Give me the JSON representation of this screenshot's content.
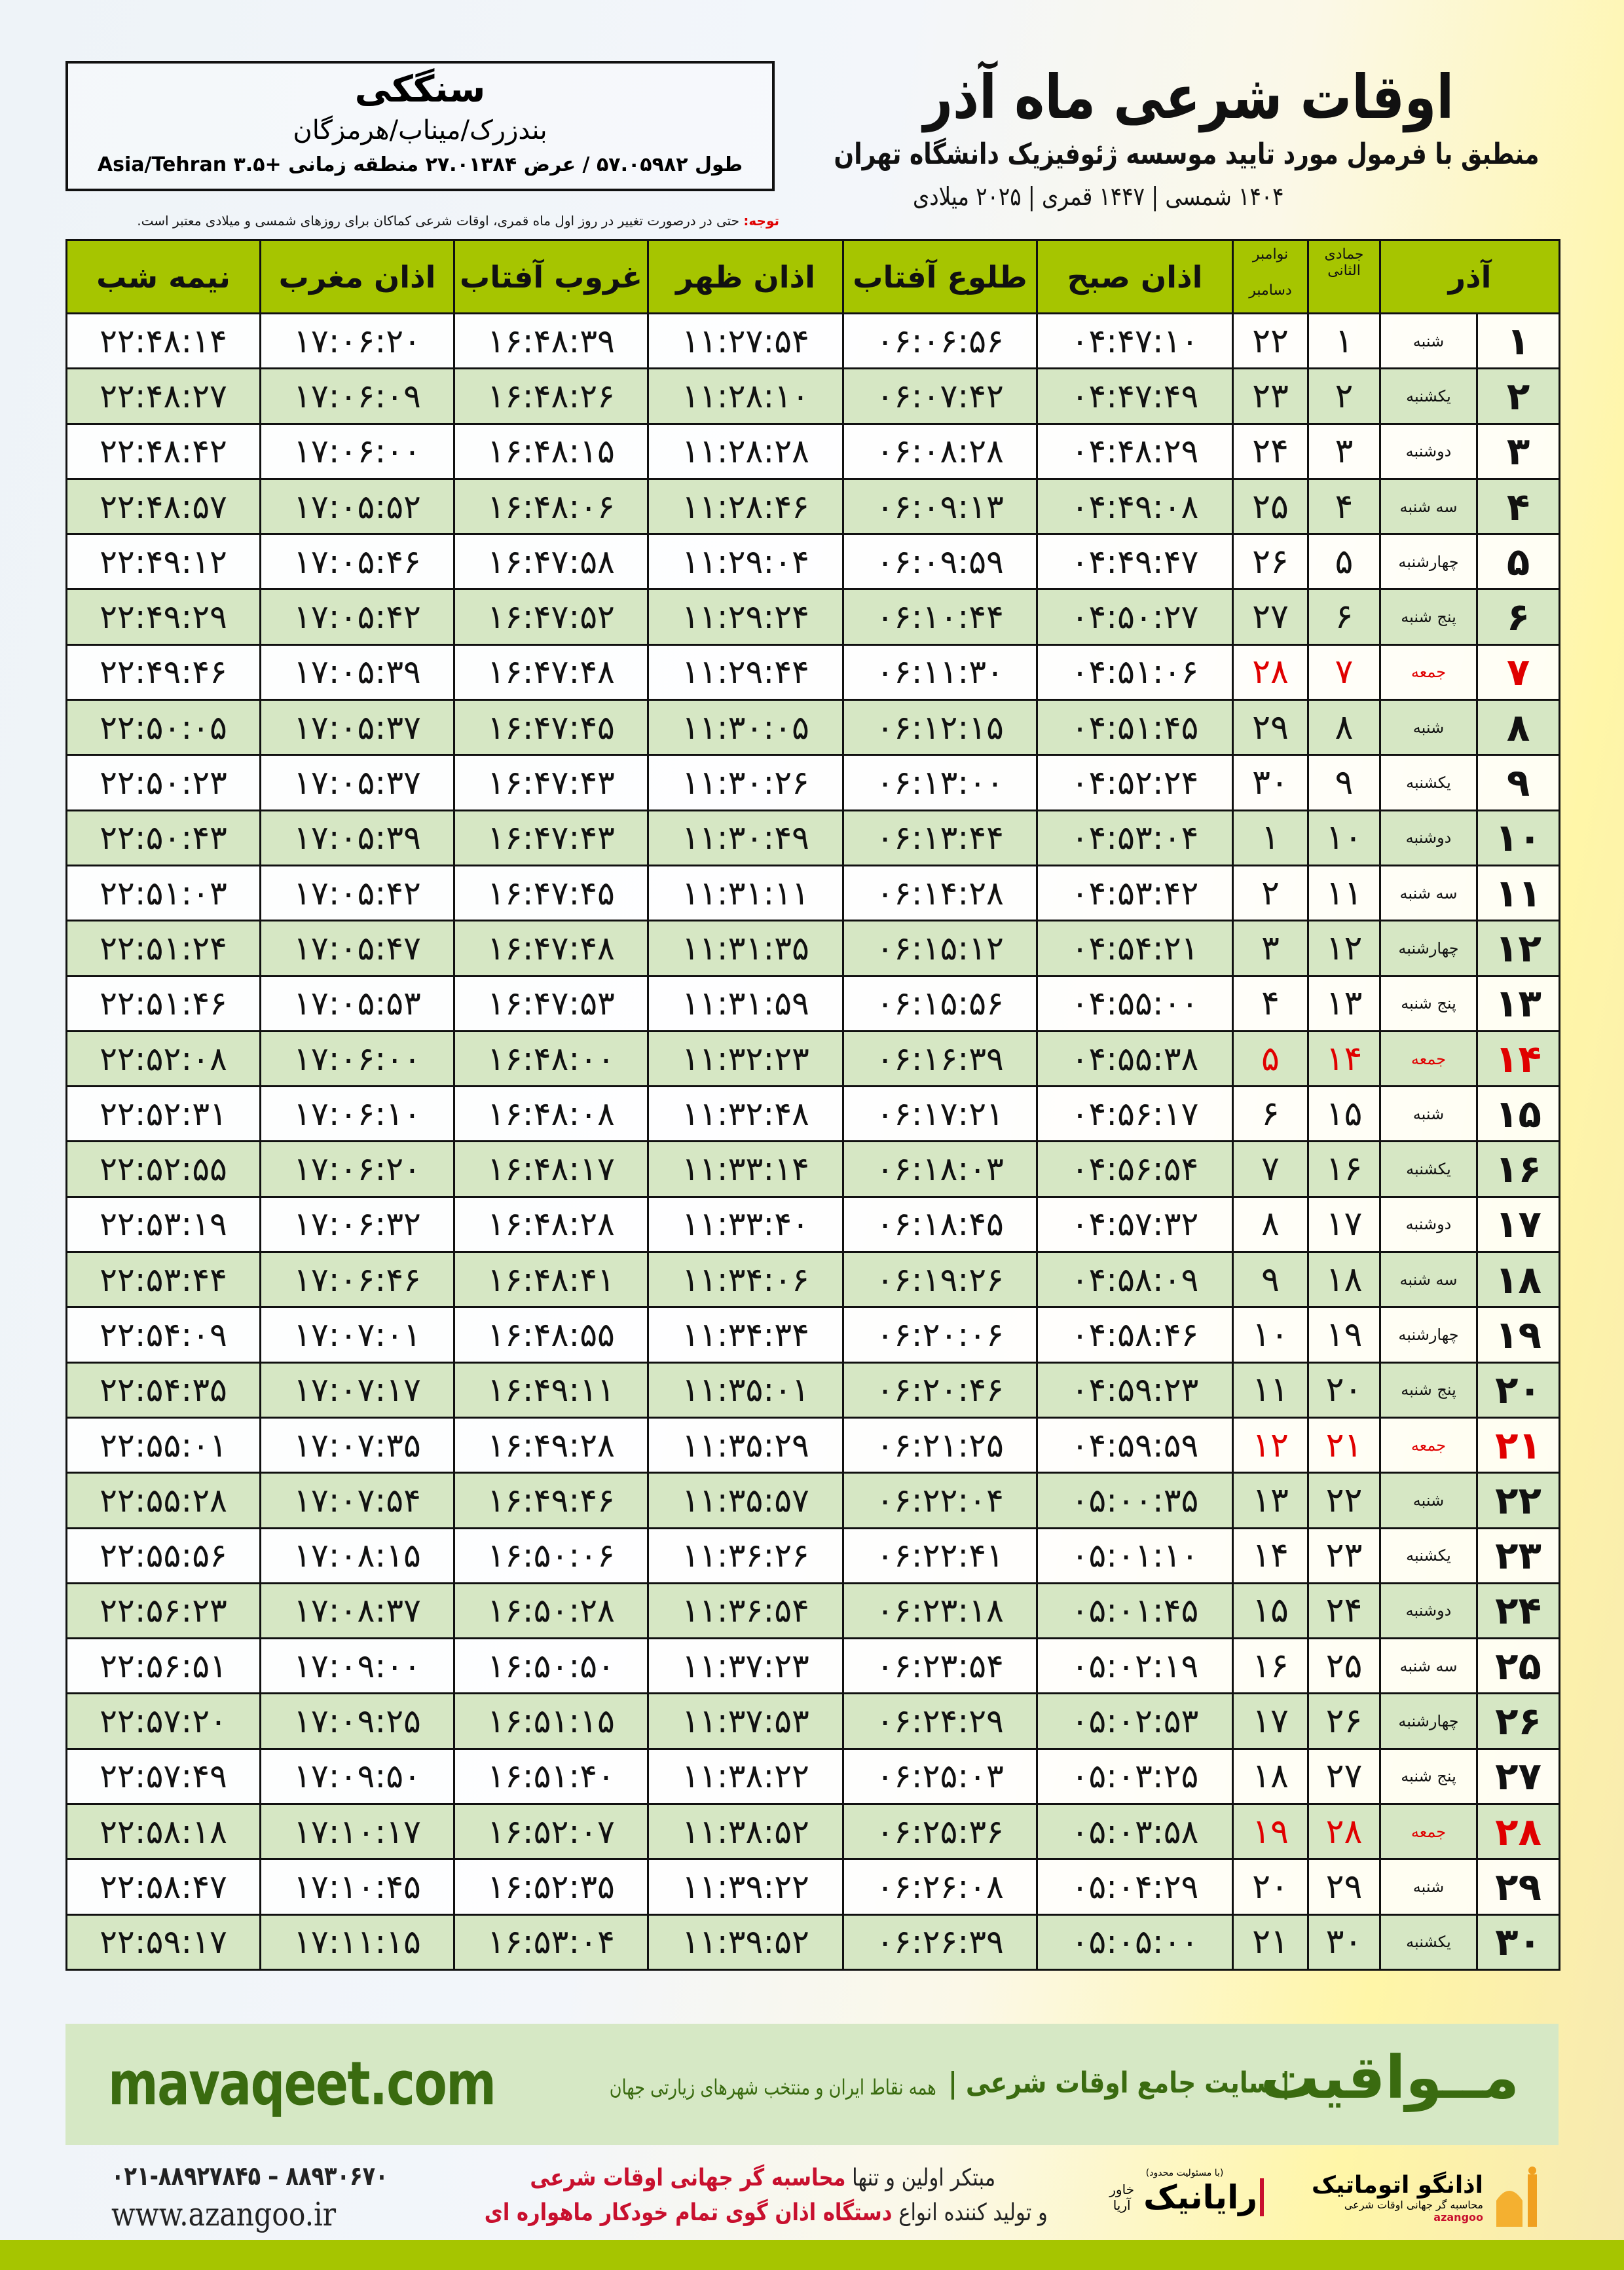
{
  "header": {
    "title": "اوقات شرعی ماه آذر",
    "subtitle": "منطبق با فرمول مورد تایید موسسه ژئوفیزیک دانشگاه تهران",
    "dates": "۱۴۰۴ شمسی | ۱۴۴۷ قمری | ۲۰۲۵ میلادی"
  },
  "location": {
    "city": "سنگکی",
    "region": "بندزرک/میناب/هرمزگان",
    "coords": "طول ۵۷.۰۵۹۸۲ / عرض ۲۷.۰۱۳۸۴ منطقه زمانی +۳.۵ Asia/Tehran"
  },
  "note": {
    "label": "توجه:",
    "text": " حتی در درصورت تغییر در روز اول ماه قمری، اوقات شرعی کماکان برای روزهای شمسی و میلادی معتبر است."
  },
  "table": {
    "headers": {
      "month": "آذر",
      "hijri": "جمادی الثانی",
      "greg1": "نوامبر",
      "greg2": "دسامبر",
      "fajr": "اذان صبح",
      "sunrise": "طلوع آفتاب",
      "dhuhr": "اذان ظهر",
      "sunset": "غروب آفتاب",
      "maghrib": "اذان مغرب",
      "midnight": "نیمه شب"
    },
    "holiday_color": "#e00000",
    "rows": [
      [
        "۱",
        "شنبه",
        "۱",
        "۲۲",
        "۰۴:۴۷:۱۰",
        "۰۶:۰۶:۵۶",
        "۱۱:۲۷:۵۴",
        "۱۶:۴۸:۳۹",
        "۱۷:۰۶:۲۰",
        "۲۲:۴۸:۱۴"
      ],
      [
        "۲",
        "یکشنبه",
        "۲",
        "۲۳",
        "۰۴:۴۷:۴۹",
        "۰۶:۰۷:۴۲",
        "۱۱:۲۸:۱۰",
        "۱۶:۴۸:۲۶",
        "۱۷:۰۶:۰۹",
        "۲۲:۴۸:۲۷"
      ],
      [
        "۳",
        "دوشنبه",
        "۳",
        "۲۴",
        "۰۴:۴۸:۲۹",
        "۰۶:۰۸:۲۸",
        "۱۱:۲۸:۲۸",
        "۱۶:۴۸:۱۵",
        "۱۷:۰۶:۰۰",
        "۲۲:۴۸:۴۲"
      ],
      [
        "۴",
        "سه شنبه",
        "۴",
        "۲۵",
        "۰۴:۴۹:۰۸",
        "۰۶:۰۹:۱۳",
        "۱۱:۲۸:۴۶",
        "۱۶:۴۸:۰۶",
        "۱۷:۰۵:۵۲",
        "۲۲:۴۸:۵۷"
      ],
      [
        "۵",
        "چهارشنبه",
        "۵",
        "۲۶",
        "۰۴:۴۹:۴۷",
        "۰۶:۰۹:۵۹",
        "۱۱:۲۹:۰۴",
        "۱۶:۴۷:۵۸",
        "۱۷:۰۵:۴۶",
        "۲۲:۴۹:۱۲"
      ],
      [
        "۶",
        "پنج شنبه",
        "۶",
        "۲۷",
        "۰۴:۵۰:۲۷",
        "۰۶:۱۰:۴۴",
        "۱۱:۲۹:۲۴",
        "۱۶:۴۷:۵۲",
        "۱۷:۰۵:۴۲",
        "۲۲:۴۹:۲۹"
      ],
      [
        "۷",
        "جمعه",
        "۷",
        "۲۸",
        "۰۴:۵۱:۰۶",
        "۰۶:۱۱:۳۰",
        "۱۱:۲۹:۴۴",
        "۱۶:۴۷:۴۸",
        "۱۷:۰۵:۳۹",
        "۲۲:۴۹:۴۶"
      ],
      [
        "۸",
        "شنبه",
        "۸",
        "۲۹",
        "۰۴:۵۱:۴۵",
        "۰۶:۱۲:۱۵",
        "۱۱:۳۰:۰۵",
        "۱۶:۴۷:۴۵",
        "۱۷:۰۵:۳۷",
        "۲۲:۵۰:۰۵"
      ],
      [
        "۹",
        "یکشنبه",
        "۹",
        "۳۰",
        "۰۴:۵۲:۲۴",
        "۰۶:۱۳:۰۰",
        "۱۱:۳۰:۲۶",
        "۱۶:۴۷:۴۳",
        "۱۷:۰۵:۳۷",
        "۲۲:۵۰:۲۳"
      ],
      [
        "۱۰",
        "دوشنبه",
        "۱۰",
        "۱",
        "۰۴:۵۳:۰۴",
        "۰۶:۱۳:۴۴",
        "۱۱:۳۰:۴۹",
        "۱۶:۴۷:۴۳",
        "۱۷:۰۵:۳۹",
        "۲۲:۵۰:۴۳"
      ],
      [
        "۱۱",
        "سه شنبه",
        "۱۱",
        "۲",
        "۰۴:۵۳:۴۲",
        "۰۶:۱۴:۲۸",
        "۱۱:۳۱:۱۱",
        "۱۶:۴۷:۴۵",
        "۱۷:۰۵:۴۲",
        "۲۲:۵۱:۰۳"
      ],
      [
        "۱۲",
        "چهارشنبه",
        "۱۲",
        "۳",
        "۰۴:۵۴:۲۱",
        "۰۶:۱۵:۱۲",
        "۱۱:۳۱:۳۵",
        "۱۶:۴۷:۴۸",
        "۱۷:۰۵:۴۷",
        "۲۲:۵۱:۲۴"
      ],
      [
        "۱۳",
        "پنج شنبه",
        "۱۳",
        "۴",
        "۰۴:۵۵:۰۰",
        "۰۶:۱۵:۵۶",
        "۱۱:۳۱:۵۹",
        "۱۶:۴۷:۵۳",
        "۱۷:۰۵:۵۳",
        "۲۲:۵۱:۴۶"
      ],
      [
        "۱۴",
        "جمعه",
        "۱۴",
        "۵",
        "۰۴:۵۵:۳۸",
        "۰۶:۱۶:۳۹",
        "۱۱:۳۲:۲۳",
        "۱۶:۴۸:۰۰",
        "۱۷:۰۶:۰۰",
        "۲۲:۵۲:۰۸"
      ],
      [
        "۱۵",
        "شنبه",
        "۱۵",
        "۶",
        "۰۴:۵۶:۱۷",
        "۰۶:۱۷:۲۱",
        "۱۱:۳۲:۴۸",
        "۱۶:۴۸:۰۸",
        "۱۷:۰۶:۱۰",
        "۲۲:۵۲:۳۱"
      ],
      [
        "۱۶",
        "یکشنبه",
        "۱۶",
        "۷",
        "۰۴:۵۶:۵۴",
        "۰۶:۱۸:۰۳",
        "۱۱:۳۳:۱۴",
        "۱۶:۴۸:۱۷",
        "۱۷:۰۶:۲۰",
        "۲۲:۵۲:۵۵"
      ],
      [
        "۱۷",
        "دوشنبه",
        "۱۷",
        "۸",
        "۰۴:۵۷:۳۲",
        "۰۶:۱۸:۴۵",
        "۱۱:۳۳:۴۰",
        "۱۶:۴۸:۲۸",
        "۱۷:۰۶:۳۲",
        "۲۲:۵۳:۱۹"
      ],
      [
        "۱۸",
        "سه شنبه",
        "۱۸",
        "۹",
        "۰۴:۵۸:۰۹",
        "۰۶:۱۹:۲۶",
        "۱۱:۳۴:۰۶",
        "۱۶:۴۸:۴۱",
        "۱۷:۰۶:۴۶",
        "۲۲:۵۳:۴۴"
      ],
      [
        "۱۹",
        "چهارشنبه",
        "۱۹",
        "۱۰",
        "۰۴:۵۸:۴۶",
        "۰۶:۲۰:۰۶",
        "۱۱:۳۴:۳۴",
        "۱۶:۴۸:۵۵",
        "۱۷:۰۷:۰۱",
        "۲۲:۵۴:۰۹"
      ],
      [
        "۲۰",
        "پنج شنبه",
        "۲۰",
        "۱۱",
        "۰۴:۵۹:۲۳",
        "۰۶:۲۰:۴۶",
        "۱۱:۳۵:۰۱",
        "۱۶:۴۹:۱۱",
        "۱۷:۰۷:۱۷",
        "۲۲:۵۴:۳۵"
      ],
      [
        "۲۱",
        "جمعه",
        "۲۱",
        "۱۲",
        "۰۴:۵۹:۵۹",
        "۰۶:۲۱:۲۵",
        "۱۱:۳۵:۲۹",
        "۱۶:۴۹:۲۸",
        "۱۷:۰۷:۳۵",
        "۲۲:۵۵:۰۱"
      ],
      [
        "۲۲",
        "شنبه",
        "۲۲",
        "۱۳",
        "۰۵:۰۰:۳۵",
        "۰۶:۲۲:۰۴",
        "۱۱:۳۵:۵۷",
        "۱۶:۴۹:۴۶",
        "۱۷:۰۷:۵۴",
        "۲۲:۵۵:۲۸"
      ],
      [
        "۲۳",
        "یکشنبه",
        "۲۳",
        "۱۴",
        "۰۵:۰۱:۱۰",
        "۰۶:۲۲:۴۱",
        "۱۱:۳۶:۲۶",
        "۱۶:۵۰:۰۶",
        "۱۷:۰۸:۱۵",
        "۲۲:۵۵:۵۶"
      ],
      [
        "۲۴",
        "دوشنبه",
        "۲۴",
        "۱۵",
        "۰۵:۰۱:۴۵",
        "۰۶:۲۳:۱۸",
        "۱۱:۳۶:۵۴",
        "۱۶:۵۰:۲۸",
        "۱۷:۰۸:۳۷",
        "۲۲:۵۶:۲۳"
      ],
      [
        "۲۵",
        "سه شنبه",
        "۲۵",
        "۱۶",
        "۰۵:۰۲:۱۹",
        "۰۶:۲۳:۵۴",
        "۱۱:۳۷:۲۳",
        "۱۶:۵۰:۵۰",
        "۱۷:۰۹:۰۰",
        "۲۲:۵۶:۵۱"
      ],
      [
        "۲۶",
        "چهارشنبه",
        "۲۶",
        "۱۷",
        "۰۵:۰۲:۵۳",
        "۰۶:۲۴:۲۹",
        "۱۱:۳۷:۵۳",
        "۱۶:۵۱:۱۵",
        "۱۷:۰۹:۲۵",
        "۲۲:۵۷:۲۰"
      ],
      [
        "۲۷",
        "پنج شنبه",
        "۲۷",
        "۱۸",
        "۰۵:۰۳:۲۵",
        "۰۶:۲۵:۰۳",
        "۱۱:۳۸:۲۲",
        "۱۶:۵۱:۴۰",
        "۱۷:۰۹:۵۰",
        "۲۲:۵۷:۴۹"
      ],
      [
        "۲۸",
        "جمعه",
        "۲۸",
        "۱۹",
        "۰۵:۰۳:۵۸",
        "۰۶:۲۵:۳۶",
        "۱۱:۳۸:۵۲",
        "۱۶:۵۲:۰۷",
        "۱۷:۱۰:۱۷",
        "۲۲:۵۸:۱۸"
      ],
      [
        "۲۹",
        "شنبه",
        "۲۹",
        "۲۰",
        "۰۵:۰۴:۲۹",
        "۰۶:۲۶:۰۸",
        "۱۱:۳۹:۲۲",
        "۱۶:۵۲:۳۵",
        "۱۷:۱۰:۴۵",
        "۲۲:۵۸:۴۷"
      ],
      [
        "۳۰",
        "یکشنبه",
        "۳۰",
        "۲۱",
        "۰۵:۰۵:۰۰",
        "۰۶:۲۶:۳۹",
        "۱۱:۳۹:۵۲",
        "۱۶:۵۳:۰۴",
        "۱۷:۱۱:۱۵",
        "۲۲:۵۹:۱۷"
      ]
    ]
  },
  "banner": {
    "brand": "مــواقیت",
    "slogan": "| سایت جامع اوقات شرعی |",
    "slogan2": "همه نقاط ایران و منتخب شهرهای زیارتی جهان",
    "site": "mavaqeet.com"
  },
  "footer": {
    "phone": "۰۲۱-۸۸۹۲۷۸۴۵ – ۸۸۹۳۰۶۷۰",
    "www": "www.azangoo.ir",
    "promo1_a": "مبتکر اولین و تنها ",
    "promo1_b": "محاسبه گر جهانی اوقات شرعی",
    "promo2_a": "و تولید کننده انواع ",
    "promo2_b": "دستگاه اذان گوی تمام خودکار ماهواره ای",
    "rayanik_note": "(با مسئولیت محدود)",
    "rayanik": "رایانیک",
    "rayanik_sub": "خاور آریا",
    "azangoo_name": "اذانگو اتوماتیک",
    "azangoo_sub": "محاسبه گر جهانی اوقات شرعی",
    "azangoo_latin": "azangoo"
  },
  "colors": {
    "header_green": "#a6c500",
    "row_green": "#d6e7c4",
    "brand_green": "#3a6b10",
    "holiday_red": "#e00000"
  }
}
